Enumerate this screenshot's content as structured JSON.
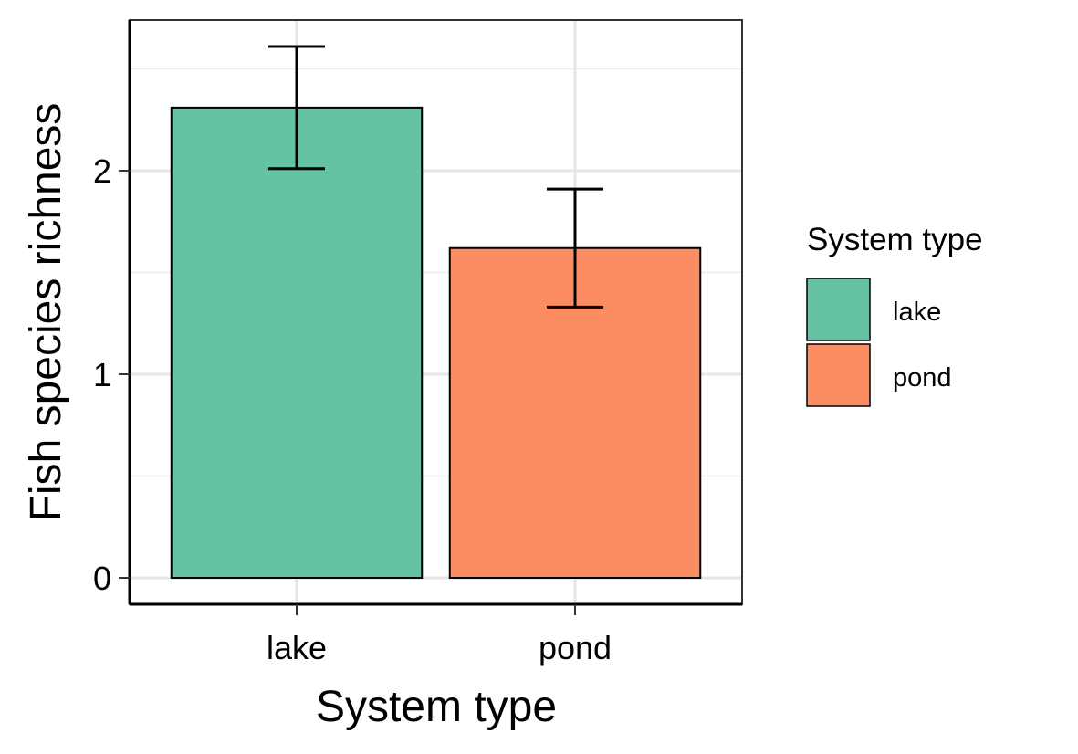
{
  "chart_data": {
    "type": "bar",
    "categories": [
      "lake",
      "pond"
    ],
    "values": [
      2.31,
      1.62
    ],
    "error_low": [
      2.01,
      1.33
    ],
    "error_high": [
      2.61,
      1.91
    ],
    "colors": [
      "#66c2a5",
      "#fc8d62"
    ],
    "xlabel": "System type",
    "ylabel": "Fish species richness",
    "ylim": [
      -0.13,
      2.74
    ],
    "yticks": [
      0,
      1,
      2
    ],
    "yticks_labels": [
      "0",
      "1",
      "2"
    ],
    "grid": true,
    "legend": {
      "title": "System type",
      "placement": "right",
      "items": [
        {
          "label": "lake",
          "color": "#66c2a5"
        },
        {
          "label": "pond",
          "color": "#fc8d62"
        }
      ]
    }
  }
}
